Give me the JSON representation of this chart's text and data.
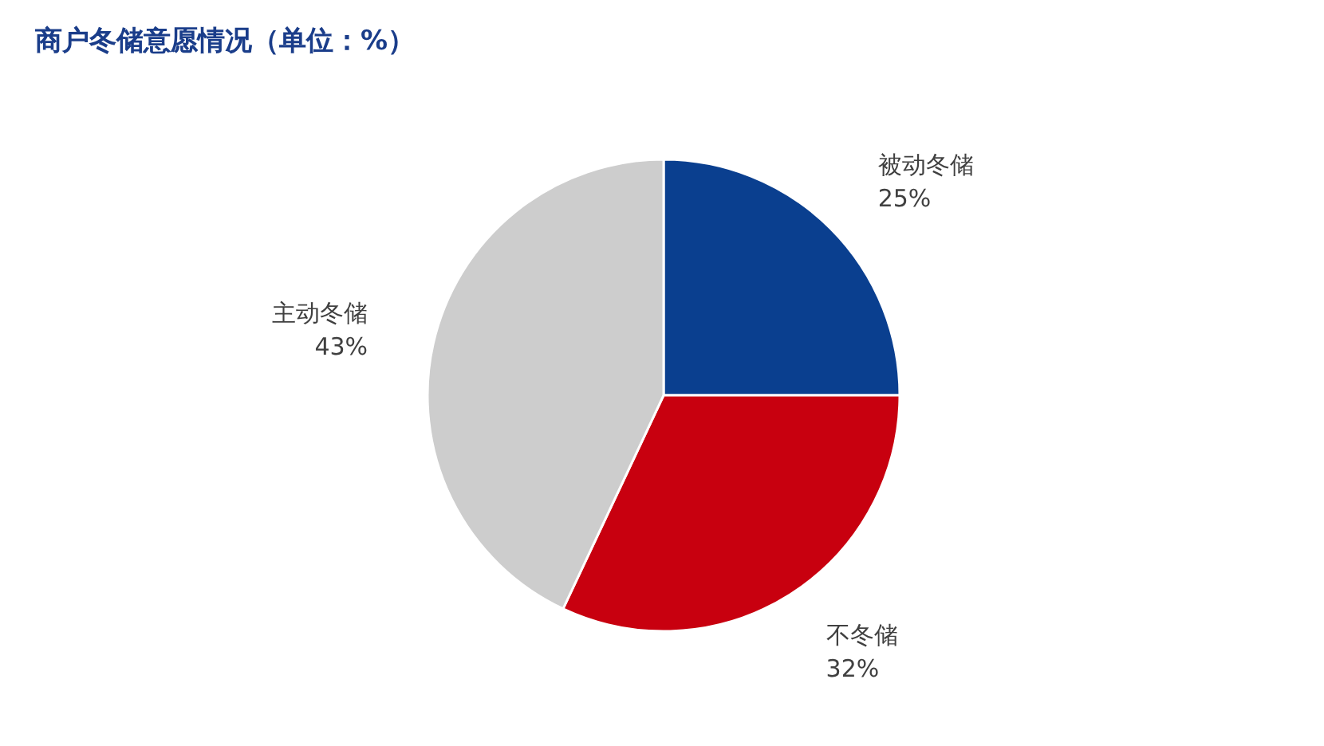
{
  "chart_data": {
    "type": "pie",
    "title": "商户冬储意愿情况（单位：%）",
    "categories": [
      "被动冬储",
      "不冬储",
      "主动冬储"
    ],
    "values": [
      25,
      32,
      43
    ],
    "colors": [
      "#0a3f8f",
      "#c8000f",
      "#cdcdcd"
    ],
    "value_labels": [
      "25%",
      "32%",
      "43%"
    ]
  }
}
